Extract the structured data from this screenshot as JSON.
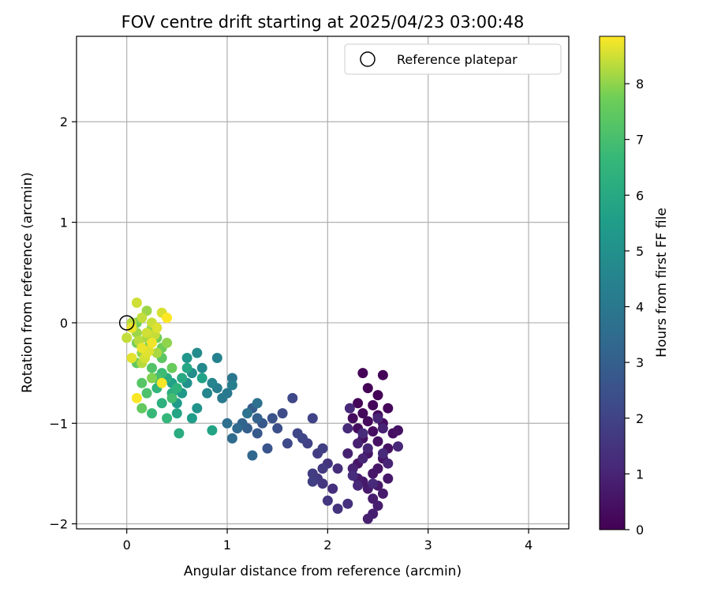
{
  "chart_data": {
    "type": "scatter",
    "title": "FOV centre drift starting at 2025/04/23 03:00:48",
    "xlabel": "Angular distance from reference (arcmin)",
    "ylabel": "Rotation from reference (arcmin)",
    "xlim": [
      -0.5,
      4.4
    ],
    "ylim": [
      -2.05,
      2.85
    ],
    "x_ticks": [
      0,
      1,
      2,
      3,
      4
    ],
    "y_ticks": [
      -2,
      -1,
      0,
      1,
      2
    ],
    "x_tick_labels": [
      "0",
      "1",
      "2",
      "3",
      "4"
    ],
    "y_tick_labels": [
      "−2",
      "−1",
      "0",
      "1",
      "2"
    ],
    "grid": true,
    "legend": {
      "position": "top-right",
      "entries": [
        "Reference platepar"
      ]
    },
    "reference_point": {
      "name": "Reference platepar",
      "x": 0,
      "y": 0
    },
    "colorbar": {
      "label": "Hours from first FF file",
      "colormap": "viridis",
      "range": [
        0,
        8.85
      ],
      "ticks": [
        0,
        1,
        2,
        3,
        4,
        5,
        6,
        7,
        8
      ]
    },
    "points": [
      [
        2.35,
        -0.5,
        0.05
      ],
      [
        2.55,
        -0.52,
        0.07
      ],
      [
        2.4,
        -0.65,
        0.1
      ],
      [
        2.5,
        -0.72,
        0.12
      ],
      [
        2.3,
        -0.8,
        0.15
      ],
      [
        2.45,
        -0.82,
        0.17
      ],
      [
        2.6,
        -0.85,
        0.2
      ],
      [
        2.35,
        -0.9,
        0.22
      ],
      [
        2.5,
        -0.92,
        0.25
      ],
      [
        2.25,
        -0.95,
        0.27
      ],
      [
        2.4,
        -0.98,
        0.3
      ],
      [
        2.55,
        -1.0,
        0.32
      ],
      [
        2.3,
        -1.05,
        0.35
      ],
      [
        2.45,
        -1.08,
        0.37
      ],
      [
        2.65,
        -1.1,
        0.4
      ],
      [
        2.35,
        -1.15,
        0.42
      ],
      [
        2.5,
        -1.18,
        0.45
      ],
      [
        2.7,
        -1.07,
        0.47
      ],
      [
        2.6,
        -1.25,
        0.5
      ],
      [
        2.4,
        -1.3,
        0.52
      ],
      [
        2.55,
        -1.35,
        0.55
      ],
      [
        2.3,
        -1.4,
        0.57
      ],
      [
        2.5,
        -1.45,
        0.6
      ],
      [
        2.45,
        -1.5,
        0.62
      ],
      [
        2.6,
        -1.55,
        0.65
      ],
      [
        2.35,
        -1.58,
        0.67
      ],
      [
        2.5,
        -1.62,
        0.7
      ],
      [
        2.4,
        -1.65,
        0.72
      ],
      [
        2.55,
        -1.7,
        0.75
      ],
      [
        2.3,
        -1.55,
        0.77
      ],
      [
        2.45,
        -1.75,
        0.8
      ],
      [
        2.5,
        -1.82,
        0.82
      ],
      [
        2.45,
        -1.9,
        0.85
      ],
      [
        2.4,
        -1.95,
        0.87
      ],
      [
        2.2,
        -1.3,
        0.9
      ],
      [
        2.3,
        -1.2,
        0.92
      ],
      [
        2.55,
        -1.05,
        0.95
      ],
      [
        2.25,
        -1.45,
        0.97
      ],
      [
        2.6,
        -1.4,
        1.0
      ],
      [
        2.35,
        -1.35,
        1.02
      ],
      [
        2.5,
        -0.95,
        1.05
      ],
      [
        2.4,
        -1.25,
        1.07
      ],
      [
        2.3,
        -1.62,
        1.1
      ],
      [
        2.7,
        -1.23,
        1.12
      ],
      [
        2.22,
        -0.85,
        1.15
      ],
      [
        2.45,
        -1.6,
        1.17
      ],
      [
        2.2,
        -1.05,
        1.2
      ],
      [
        2.55,
        -1.3,
        1.22
      ],
      [
        2.35,
        -1.1,
        1.25
      ],
      [
        2.25,
        -1.52,
        1.27
      ],
      [
        2.1,
        -1.45,
        1.3
      ],
      [
        2.05,
        -1.65,
        1.35
      ],
      [
        2.2,
        -1.8,
        1.4
      ],
      [
        2.1,
        -1.85,
        1.45
      ],
      [
        2.0,
        -1.4,
        1.5
      ],
      [
        1.95,
        -1.6,
        1.55
      ],
      [
        2.0,
        -1.77,
        1.6
      ],
      [
        1.9,
        -1.55,
        1.65
      ],
      [
        1.95,
        -1.45,
        1.7
      ],
      [
        1.85,
        -1.5,
        1.75
      ],
      [
        1.9,
        -1.3,
        1.8
      ],
      [
        1.85,
        -1.58,
        1.85
      ],
      [
        1.95,
        -1.25,
        1.9
      ],
      [
        1.8,
        -1.2,
        1.95
      ],
      [
        1.85,
        -0.95,
        2.0
      ],
      [
        1.75,
        -1.15,
        2.05
      ],
      [
        1.7,
        -1.1,
        2.1
      ],
      [
        1.65,
        -0.75,
        2.15
      ],
      [
        1.6,
        -1.2,
        2.2
      ],
      [
        1.55,
        -0.9,
        2.3
      ],
      [
        1.5,
        -1.05,
        2.4
      ],
      [
        1.45,
        -0.95,
        2.5
      ],
      [
        1.4,
        -1.25,
        2.6
      ],
      [
        1.35,
        -1.0,
        2.7
      ],
      [
        1.3,
        -1.1,
        2.8
      ],
      [
        1.25,
        -0.85,
        2.9
      ],
      [
        1.2,
        -1.05,
        3.0
      ],
      [
        1.3,
        -0.95,
        3.1
      ],
      [
        1.15,
        -1.0,
        3.2
      ],
      [
        1.25,
        -1.32,
        3.3
      ],
      [
        1.1,
        -1.05,
        3.4
      ],
      [
        1.05,
        -1.15,
        3.5
      ],
      [
        1.0,
        -1.0,
        3.6
      ],
      [
        1.3,
        -0.8,
        3.7
      ],
      [
        1.2,
        -0.9,
        3.8
      ],
      [
        1.05,
        -0.55,
        3.9
      ],
      [
        1.0,
        -0.7,
        4.0
      ],
      [
        0.95,
        -0.75,
        4.1
      ],
      [
        0.9,
        -0.65,
        4.2
      ],
      [
        1.05,
        -0.62,
        4.3
      ],
      [
        0.9,
        -0.35,
        4.4
      ],
      [
        0.85,
        -0.6,
        4.5
      ],
      [
        0.8,
        -0.7,
        4.6
      ],
      [
        0.75,
        -0.45,
        4.7
      ],
      [
        0.7,
        -0.3,
        4.8
      ],
      [
        0.65,
        -0.5,
        4.9
      ],
      [
        0.6,
        -0.6,
        5.0
      ],
      [
        0.7,
        -0.85,
        5.1
      ],
      [
        0.6,
        -0.35,
        5.2
      ],
      [
        0.55,
        -0.7,
        5.3
      ],
      [
        0.5,
        -0.8,
        5.4
      ],
      [
        0.65,
        -0.95,
        5.5
      ],
      [
        0.45,
        -0.6,
        5.6
      ],
      [
        0.75,
        -0.55,
        5.7
      ],
      [
        0.85,
        -1.07,
        5.75
      ],
      [
        0.5,
        -0.9,
        5.8
      ],
      [
        0.6,
        -0.45,
        5.9
      ],
      [
        0.55,
        -0.55,
        6.0
      ],
      [
        0.4,
        -0.55,
        6.1
      ],
      [
        0.52,
        -1.1,
        6.15
      ],
      [
        0.45,
        -0.7,
        6.2
      ],
      [
        0.35,
        -0.8,
        6.3
      ],
      [
        0.5,
        -0.65,
        6.4
      ],
      [
        0.3,
        -0.65,
        6.5
      ],
      [
        0.4,
        -0.95,
        6.6
      ],
      [
        0.25,
        -0.9,
        6.7
      ],
      [
        0.35,
        -0.5,
        6.8
      ],
      [
        0.45,
        -0.75,
        6.9
      ],
      [
        0.3,
        -0.55,
        7.0
      ],
      [
        0.2,
        -0.7,
        7.1
      ],
      [
        0.25,
        -0.45,
        7.2
      ],
      [
        0.15,
        -0.6,
        7.3
      ],
      [
        0.35,
        -0.35,
        7.4
      ],
      [
        0.1,
        -0.4,
        7.5
      ],
      [
        0.2,
        -0.25,
        7.6
      ],
      [
        0.3,
        -0.15,
        7.7
      ],
      [
        0.1,
        -0.2,
        7.8
      ],
      [
        0.25,
        -0.05,
        7.9
      ],
      [
        0.15,
        -0.3,
        8.0
      ],
      [
        0.1,
        -0.1,
        8.1
      ],
      [
        0.2,
        -0.15,
        8.2
      ],
      [
        0.05,
        0.0,
        8.3
      ],
      [
        0.15,
        0.05,
        8.4
      ],
      [
        0.25,
        0.0,
        8.45
      ],
      [
        0.1,
        0.2,
        8.5
      ],
      [
        0.35,
        0.1,
        8.55
      ],
      [
        0.2,
        -0.3,
        8.6
      ],
      [
        0.05,
        -0.35,
        8.65
      ],
      [
        0.15,
        -0.25,
        8.7
      ],
      [
        0.25,
        -0.2,
        8.75
      ],
      [
        0.35,
        -0.6,
        8.8
      ],
      [
        0.1,
        -0.75,
        8.82
      ],
      [
        0.4,
        0.05,
        8.85
      ],
      [
        0.3,
        -0.05,
        8.6
      ],
      [
        0.2,
        -0.1,
        8.5
      ],
      [
        0.0,
        -0.15,
        8.4
      ],
      [
        0.15,
        -0.4,
        8.3
      ],
      [
        0.3,
        -0.3,
        8.2
      ],
      [
        0.2,
        0.12,
        8.1
      ],
      [
        0.4,
        -0.2,
        8.0
      ],
      [
        0.25,
        -0.55,
        7.9
      ],
      [
        0.1,
        0.0,
        7.8
      ],
      [
        0.35,
        -0.25,
        7.7
      ],
      [
        0.45,
        -0.45,
        7.6
      ],
      [
        0.15,
        -0.85,
        7.5
      ],
      [
        0.05,
        -0.05,
        8.7
      ],
      [
        0.22,
        -0.28,
        8.62
      ],
      [
        0.18,
        -0.35,
        8.52
      ],
      [
        0.28,
        -0.12,
        8.42
      ],
      [
        0.12,
        -0.18,
        8.32
      ]
    ]
  }
}
